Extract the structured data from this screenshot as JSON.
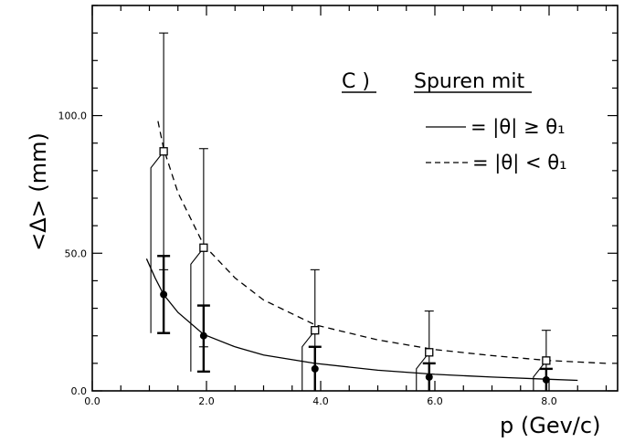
{
  "chart_data": {
    "type": "scatter",
    "panel_label": "C )",
    "panel_title": "Spuren mit",
    "xlabel": "p (Gev/c)",
    "ylabel": "<Δ> (mm)",
    "xlim": [
      0,
      9.2
    ],
    "ylim": [
      0,
      140
    ],
    "x_ticks": [
      "0.0",
      "2.0",
      "4.0",
      "6.0",
      "8.0"
    ],
    "x_tick_values": [
      0,
      2,
      4,
      6,
      8
    ],
    "y_ticks": [
      "0.0",
      "50.0",
      "100.0"
    ],
    "y_tick_values": [
      0,
      50,
      100
    ],
    "grid": false,
    "legend_position": "top-right",
    "legend": [
      {
        "style": "solid",
        "label": "= |θ| ≥ θ₁"
      },
      {
        "style": "dashed",
        "label": "= |θ| < θ₁"
      }
    ],
    "series": [
      {
        "style": "solid",
        "marker": "filled-circle",
        "points": [
          {
            "x": 1.25,
            "y": 35,
            "err_low": 21,
            "err_high": 49
          },
          {
            "x": 1.95,
            "y": 20,
            "err_low": 7,
            "err_high": 31
          },
          {
            "x": 3.9,
            "y": 8,
            "err_low": 0,
            "err_high": 16
          },
          {
            "x": 5.9,
            "y": 5,
            "err_low": 0,
            "err_high": 10
          },
          {
            "x": 7.95,
            "y": 4,
            "err_low": 0,
            "err_high": 8
          }
        ],
        "fit": [
          {
            "x": 0.95,
            "y": 48
          },
          {
            "x": 1.1,
            "y": 41
          },
          {
            "x": 1.25,
            "y": 35
          },
          {
            "x": 1.5,
            "y": 28.5
          },
          {
            "x": 1.95,
            "y": 20.5
          },
          {
            "x": 2.5,
            "y": 16
          },
          {
            "x": 3.0,
            "y": 13
          },
          {
            "x": 3.9,
            "y": 10
          },
          {
            "x": 5.0,
            "y": 7.5
          },
          {
            "x": 6.0,
            "y": 6
          },
          {
            "x": 7.0,
            "y": 5
          },
          {
            "x": 8.0,
            "y": 4.2
          },
          {
            "x": 8.5,
            "y": 3.8
          }
        ]
      },
      {
        "style": "dashed",
        "marker": "open-square",
        "points": [
          {
            "x": 1.25,
            "y": 87,
            "err_low": 44,
            "err_high": 130
          },
          {
            "x": 1.95,
            "y": 52,
            "err_low": 16,
            "err_high": 88
          },
          {
            "x": 3.9,
            "y": 22,
            "err_low": 0,
            "err_high": 44
          },
          {
            "x": 5.9,
            "y": 14,
            "err_low": 0,
            "err_high": 29
          },
          {
            "x": 7.95,
            "y": 11,
            "err_low": 0,
            "err_high": 22
          }
        ],
        "fit": [
          {
            "x": 1.15,
            "y": 98
          },
          {
            "x": 1.25,
            "y": 88
          },
          {
            "x": 1.5,
            "y": 72
          },
          {
            "x": 1.95,
            "y": 53
          },
          {
            "x": 2.5,
            "y": 41
          },
          {
            "x": 3.0,
            "y": 33
          },
          {
            "x": 3.9,
            "y": 24
          },
          {
            "x": 5.0,
            "y": 18.5
          },
          {
            "x": 6.0,
            "y": 15
          },
          {
            "x": 7.0,
            "y": 12.8
          },
          {
            "x": 8.0,
            "y": 11
          },
          {
            "x": 9.0,
            "y": 10
          }
        ]
      }
    ]
  }
}
